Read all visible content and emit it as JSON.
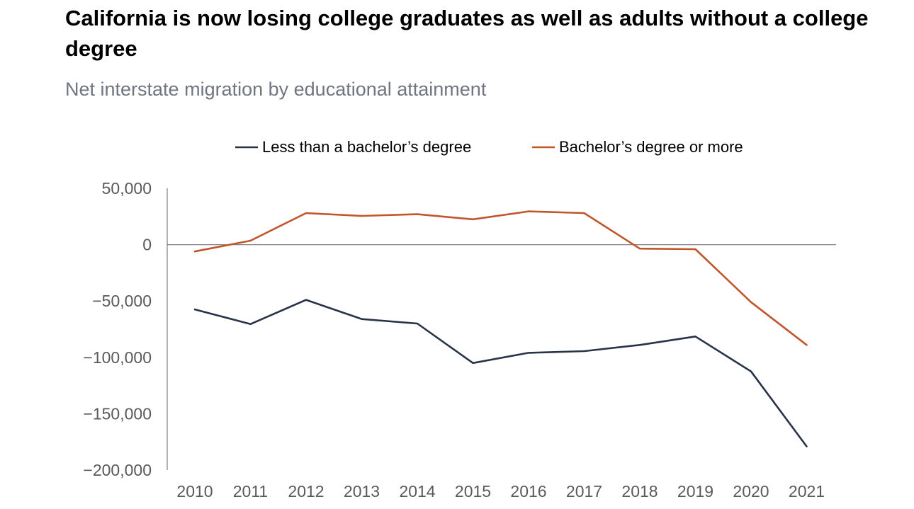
{
  "title": "California is now losing college graduates as well as adults without a college degree",
  "subtitle": "Net interstate migration by educational attainment",
  "colors": {
    "less_than_bachelors": "#283347",
    "bachelors_or_more": "#c1552b",
    "axis": "#7f7f7f",
    "tick_text": "#595959"
  },
  "chart_data": {
    "type": "line",
    "title": "California is now losing college graduates as well as adults without a college degree",
    "subtitle": "Net interstate migration by educational attainment",
    "xlabel": "",
    "ylabel": "",
    "x": [
      "2010",
      "2011",
      "2012",
      "2013",
      "2014",
      "2015",
      "2016",
      "2017",
      "2018",
      "2019",
      "2020",
      "2021"
    ],
    "ylim": [
      -200000,
      50000
    ],
    "yticks": [
      50000,
      0,
      -50000,
      -100000,
      -150000,
      -200000
    ],
    "ytick_labels": [
      "50,000",
      "0",
      "−50,000",
      "−100,000",
      "−150,000",
      "−200,000"
    ],
    "grid": false,
    "legend_position": "top",
    "series": [
      {
        "name": "Less than a bachelor’s degree",
        "color": "#283347",
        "values": [
          -57500,
          -70500,
          -49000,
          -66000,
          -70000,
          -105000,
          -96000,
          -94500,
          -89000,
          -81500,
          -112500,
          -179000
        ]
      },
      {
        "name": "Bachelor’s degree or more",
        "color": "#c1552b",
        "values": [
          -6000,
          3500,
          28000,
          25500,
          27000,
          22500,
          29500,
          28000,
          -3500,
          -4000,
          -51000,
          -89000
        ]
      }
    ]
  }
}
